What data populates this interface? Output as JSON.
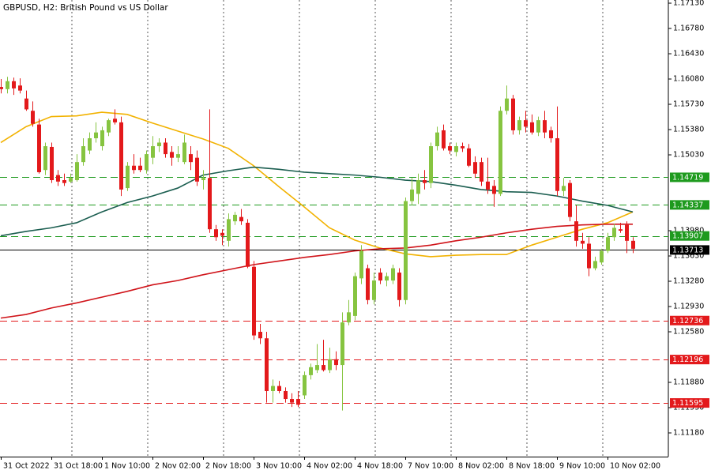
{
  "chart_data": {
    "type": "candlestick",
    "title": "GBPUSD, H2:  British Pound vs US Dollar",
    "categories": [
      "31 Oct 2022",
      null,
      null,
      null,
      null,
      null,
      null,
      null,
      "31 Oct 18:00",
      null,
      null,
      null,
      null,
      null,
      null,
      null,
      "1 Nov 10:00",
      null,
      null,
      null,
      null,
      null,
      null,
      null,
      "2 Nov 02:00",
      null,
      null,
      null,
      null,
      null,
      null,
      null,
      "2 Nov 18:00",
      null,
      null,
      null,
      null,
      null,
      null,
      null,
      "3 Nov 10:00",
      null,
      null,
      null,
      null,
      null,
      null,
      null,
      "4 Nov 02:00",
      null,
      null,
      null,
      null,
      null,
      null,
      null,
      "4 Nov 18:00",
      null,
      null,
      null,
      null,
      null,
      null,
      null,
      "7 Nov 10:00",
      null,
      null,
      null,
      null,
      null,
      null,
      null,
      "8 Nov 02:00",
      null,
      null,
      null,
      null,
      null,
      null,
      null,
      "8 Nov 18:00",
      null,
      null,
      null,
      null,
      null,
      null,
      null,
      "9 Nov 10:00",
      null,
      null,
      null,
      null,
      null,
      null,
      null,
      "10 Nov 02:00",
      null,
      null,
      null,
      null
    ],
    "open": [
      1.1597,
      1.1594,
      1.1605,
      1.1599,
      1.1581,
      1.1564,
      1.1545,
      1.1482,
      1.1514,
      1.1475,
      1.1468,
      1.1466,
      1.1468,
      1.1493,
      1.1509,
      1.1526,
      1.1515,
      1.1534,
      1.1553,
      1.1548,
      1.1457,
      1.1488,
      1.1488,
      1.1482,
      1.1499,
      1.1515,
      1.152,
      1.1507,
      1.1499,
      1.1493,
      1.1504,
      1.1499,
      1.1468,
      1.1471,
      1.14,
      1.1395,
      1.1384,
      1.1411,
      1.1417,
      1.1409,
      1.1348,
      1.1258,
      1.1249,
      1.1176,
      1.1183,
      1.1176,
      1.1165,
      1.1165,
      1.117,
      1.1198,
      1.1205,
      1.1212,
      1.1205,
      1.122,
      1.1212,
      1.1271,
      1.128,
      1.1332,
      1.1346,
      1.1302,
      1.134,
      1.1329,
      1.1329,
      1.134,
      1.1302,
      1.1439,
      1.1449,
      1.1468,
      1.1464,
      1.1515,
      1.1537,
      1.1515,
      1.1507,
      1.1515,
      1.1512,
      1.1493,
      1.1493,
      1.1466,
      1.146,
      1.1449,
      1.1564,
      1.1581,
      1.1537,
      1.1551,
      1.1548,
      1.1534,
      1.1551,
      1.1537,
      1.1526,
      1.1453,
      1.1464,
      1.1411,
      1.1384,
      1.138,
      1.1346,
      1.1354,
      1.137,
      1.1389,
      1.14,
      1.1406,
      1.1384
    ],
    "high": [
      1.1608,
      1.1611,
      1.161,
      1.1609,
      1.1592,
      1.1577,
      1.1553,
      1.152,
      1.152,
      1.1482,
      1.1477,
      1.1477,
      1.1504,
      1.1526,
      1.1534,
      1.1548,
      1.1542,
      1.1553,
      1.1566,
      1.1556,
      1.1493,
      1.1504,
      1.1499,
      1.1509,
      1.1529,
      1.1526,
      1.1526,
      1.1515,
      1.1515,
      1.1531,
      1.1515,
      1.1509,
      1.1482,
      1.1566,
      1.1406,
      1.14,
      1.1422,
      1.1424,
      1.1428,
      1.1414,
      1.1356,
      1.1269,
      1.1258,
      1.1192,
      1.119,
      1.1181,
      1.1173,
      1.1176,
      1.1203,
      1.1214,
      1.1241,
      1.1247,
      1.1236,
      1.1231,
      1.1285,
      1.1302,
      1.134,
      1.1378,
      1.1351,
      1.134,
      1.1346,
      1.134,
      1.1351,
      1.1346,
      1.1444,
      1.1471,
      1.1477,
      1.1482,
      1.152,
      1.1542,
      1.1545,
      1.152,
      1.152,
      1.152,
      1.1518,
      1.1501,
      1.1499,
      1.1499,
      1.1468,
      1.157,
      1.1599,
      1.1586,
      1.1556,
      1.1564,
      1.1559,
      1.1556,
      1.1564,
      1.1542,
      1.157,
      1.1471,
      1.1468,
      1.1433,
      1.1395,
      1.1389,
      1.1362,
      1.1373,
      1.1395,
      1.1408,
      1.1409,
      1.1411,
      1.1389
    ],
    "low": [
      1.1588,
      1.1588,
      1.1586,
      1.1588,
      1.1564,
      1.1542,
      1.1477,
      1.1475,
      1.1464,
      1.146,
      1.146,
      1.1464,
      1.1466,
      1.1488,
      1.1504,
      1.152,
      1.1509,
      1.1529,
      1.1545,
      1.1446,
      1.1453,
      1.1477,
      1.1479,
      1.1477,
      1.149,
      1.1507,
      1.1499,
      1.1488,
      1.1493,
      1.149,
      1.1482,
      1.146,
      1.1455,
      1.1395,
      1.1384,
      1.1378,
      1.1376,
      1.1406,
      1.1406,
      1.1346,
      1.1247,
      1.1241,
      1.116,
      1.116,
      1.1173,
      1.116,
      1.1154,
      1.1154,
      1.1165,
      1.1192,
      1.1201,
      1.1203,
      1.1201,
      1.1205,
      1.1149,
      1.1267,
      1.1274,
      1.1324,
      1.1296,
      1.1296,
      1.1324,
      1.1321,
      1.1324,
      1.1293,
      1.1296,
      1.1433,
      1.1435,
      1.1455,
      1.1457,
      1.1509,
      1.1509,
      1.1504,
      1.1501,
      1.1507,
      1.1486,
      1.1471,
      1.146,
      1.1449,
      1.1431,
      1.1446,
      1.1559,
      1.1531,
      1.1531,
      1.1534,
      1.1531,
      1.1529,
      1.1526,
      1.152,
      1.1446,
      1.1446,
      1.1411,
      1.1376,
      1.1373,
      1.1335,
      1.1343,
      1.1351,
      1.1367,
      1.1384,
      1.1395,
      1.1367,
      1.1367
    ],
    "close": [
      1.1594,
      1.1605,
      1.1595,
      1.1592,
      1.1566,
      1.1546,
      1.1479,
      1.1515,
      1.1468,
      1.1466,
      1.1464,
      1.1471,
      1.1493,
      1.1515,
      1.1526,
      1.1534,
      1.1537,
      1.1551,
      1.1548,
      1.1455,
      1.1488,
      1.1482,
      1.1482,
      1.1504,
      1.1515,
      1.152,
      1.1504,
      1.1499,
      1.1504,
      1.152,
      1.1493,
      1.1466,
      1.1471,
      1.14,
      1.1389,
      1.1391,
      1.1414,
      1.142,
      1.1411,
      1.1348,
      1.1253,
      1.1249,
      1.1176,
      1.1183,
      1.1176,
      1.1165,
      1.116,
      1.1157,
      1.1198,
      1.1209,
      1.1212,
      1.1205,
      1.122,
      1.1212,
      1.1271,
      1.1285,
      1.1335,
      1.137,
      1.1302,
      1.1329,
      1.1329,
      1.1335,
      1.1346,
      1.1302,
      1.1439,
      1.1455,
      1.1468,
      1.1464,
      1.1515,
      1.1534,
      1.1512,
      1.1509,
      1.1515,
      1.1512,
      1.1488,
      1.1477,
      1.1466,
      1.1455,
      1.1449,
      1.1564,
      1.1581,
      1.1537,
      1.1551,
      1.1542,
      1.1534,
      1.1551,
      1.1534,
      1.1526,
      1.1453,
      1.146,
      1.1417,
      1.1384,
      1.138,
      1.1346,
      1.1356,
      1.137,
      1.1389,
      1.1402,
      1.1398,
      1.1384,
      1.1373
    ],
    "up_color": "#86c440",
    "down_color": "#e3191b",
    "moving_averages": [
      {
        "color": "#f2b200",
        "x": [
          0,
          4,
          8,
          12,
          16,
          20,
          24,
          28,
          32,
          36,
          40,
          44,
          48,
          52,
          56,
          60,
          64,
          68,
          72,
          76,
          80,
          84,
          88,
          92,
          96,
          100
        ],
        "values": [
          1.152,
          1.1542,
          1.1556,
          1.1557,
          1.1562,
          1.1559,
          1.1547,
          1.1536,
          1.1525,
          1.1512,
          1.1488,
          1.1459,
          1.1431,
          1.1402,
          1.1385,
          1.1374,
          1.1366,
          1.1362,
          1.1364,
          1.1365,
          1.1365,
          1.1378,
          1.1389,
          1.14,
          1.1409,
          1.1424
        ]
      },
      {
        "color": "#1b5e50",
        "x": [
          0,
          4,
          8,
          12,
          16,
          20,
          24,
          28,
          32,
          36,
          40,
          44,
          48,
          52,
          56,
          60,
          64,
          68,
          72,
          76,
          80,
          84,
          88,
          92,
          96,
          100
        ],
        "values": [
          1.1391,
          1.1397,
          1.1402,
          1.1409,
          1.1424,
          1.1437,
          1.1446,
          1.1457,
          1.1475,
          1.1481,
          1.1486,
          1.1483,
          1.1479,
          1.1477,
          1.1475,
          1.1472,
          1.1468,
          1.1466,
          1.1461,
          1.1455,
          1.1452,
          1.1451,
          1.1446,
          1.1439,
          1.1433,
          1.1424
        ]
      },
      {
        "color": "#d0141a",
        "x": [
          0,
          4,
          8,
          12,
          16,
          20,
          24,
          28,
          32,
          36,
          40,
          44,
          48,
          52,
          56,
          60,
          64,
          68,
          72,
          76,
          80,
          84,
          88,
          92,
          96,
          100
        ],
        "values": [
          1.1277,
          1.1282,
          1.1291,
          1.1298,
          1.1306,
          1.1314,
          1.1323,
          1.1329,
          1.1337,
          1.1344,
          1.1351,
          1.1356,
          1.1361,
          1.1365,
          1.137,
          1.1373,
          1.1374,
          1.1378,
          1.1384,
          1.1389,
          1.1395,
          1.14,
          1.1404,
          1.1406,
          1.1407,
          1.1407
        ]
      }
    ],
    "levels": [
      {
        "price": 1.14719,
        "color": "#1e9a1e",
        "style": "dashed"
      },
      {
        "price": 1.14337,
        "color": "#1e9a1e",
        "style": "dashed"
      },
      {
        "price": 1.13907,
        "color": "#1e9a1e",
        "style": "dashed"
      },
      {
        "price": 1.13713,
        "color": "#000000",
        "style": "solid"
      },
      {
        "price": 1.12736,
        "color": "#e3191b",
        "style": "dashed"
      },
      {
        "price": 1.12196,
        "color": "#e3191b",
        "style": "dashed"
      },
      {
        "price": 1.11595,
        "color": "#e3191b",
        "style": "dashed"
      }
    ],
    "ylim": [
      1.10852,
      1.17174
    ],
    "yticks": [
      {
        "value": 1.1713,
        "label": "1.17130"
      },
      {
        "value": 1.1678,
        "label": "1.16780"
      },
      {
        "value": 1.1643,
        "label": "1.16430"
      },
      {
        "value": 1.1608,
        "label": "1.16080"
      },
      {
        "value": 1.1573,
        "label": "1.15730"
      },
      {
        "value": 1.1538,
        "label": "1.15380"
      },
      {
        "value": 1.1503,
        "label": "1.15030"
      },
      {
        "value": 1.1398,
        "label": "1.13980"
      },
      {
        "value": 1.1363,
        "label": "1.13630"
      },
      {
        "value": 1.1328,
        "label": "1.13280"
      },
      {
        "value": 1.1293,
        "label": "1.12930"
      },
      {
        "value": 1.1258,
        "label": "1.12580"
      },
      {
        "value": 1.1188,
        "label": "1.11880"
      },
      {
        "value": 1.1153,
        "label": "1.11530"
      },
      {
        "value": 1.1118,
        "label": "1.11180"
      }
    ]
  }
}
